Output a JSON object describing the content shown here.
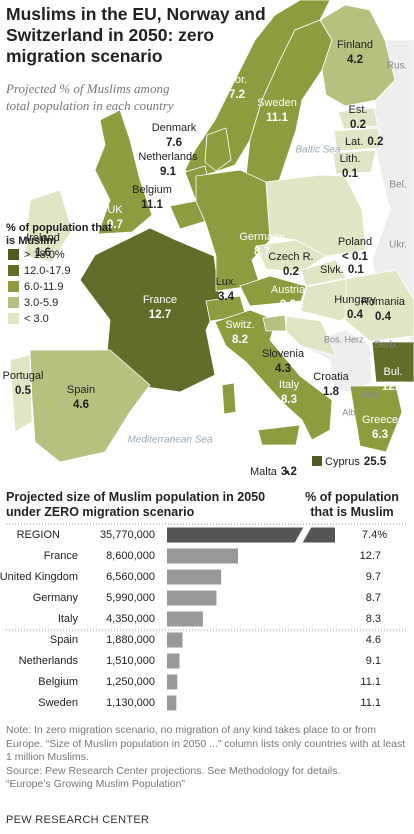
{
  "header": {
    "title": "Muslims in the EU, Norway and Switzerland in 2050: zero migration scenario",
    "subtitle": "Projected % of Muslims among total population in each country"
  },
  "map": {
    "legend": {
      "title": "% of population that is Muslim",
      "items": [
        {
          "label": "> 18.0%",
          "color": "#4e5a1f"
        },
        {
          "label": "12.0-17.9",
          "color": "#616d29"
        },
        {
          "label": "6.0-11.9",
          "color": "#8d9c3e"
        },
        {
          "label": "3.0-5.9",
          "color": "#b7c17f"
        },
        {
          "label": "< 3.0",
          "color": "#e0e5c6"
        }
      ]
    },
    "countries": [
      {
        "name": "Finland",
        "value": 4.2
      },
      {
        "name": "Nor.",
        "value": 7.2
      },
      {
        "name": "Sweden",
        "value": 11.1
      },
      {
        "name": "Est.",
        "value": 0.2
      },
      {
        "name": "Lat.",
        "value": 0.2
      },
      {
        "name": "Lith.",
        "value": 0.1
      },
      {
        "name": "Denmark",
        "value": 7.6
      },
      {
        "name": "Ireland",
        "value": 1.6
      },
      {
        "name": "UK",
        "value": 9.7
      },
      {
        "name": "Netherlands",
        "value": 9.1
      },
      {
        "name": "Belgium",
        "value": 11.1
      },
      {
        "name": "Germany",
        "value": 8.7
      },
      {
        "name": "Poland",
        "value": 0.1,
        "value_label": "< 0.1"
      },
      {
        "name": "Czech R.",
        "value": 0.2
      },
      {
        "name": "Slvk.",
        "value": 0.1
      },
      {
        "name": "Lux.",
        "value": 3.4
      },
      {
        "name": "France",
        "value": 12.7
      },
      {
        "name": "Switz.",
        "value": 8.2
      },
      {
        "name": "Austria",
        "value": 9.3
      },
      {
        "name": "Hungary",
        "value": 0.4
      },
      {
        "name": "Romania",
        "value": 0.4
      },
      {
        "name": "Slovenia",
        "value": 4.3
      },
      {
        "name": "Croatia",
        "value": 1.8
      },
      {
        "name": "Italy",
        "value": 8.3
      },
      {
        "name": "Bul.",
        "value": 12.5
      },
      {
        "name": "Greece",
        "value": 6.3
      },
      {
        "name": "Portugal",
        "value": 0.5
      },
      {
        "name": "Spain",
        "value": 4.6
      },
      {
        "name": "Malta",
        "value": 3.2
      },
      {
        "name": "Cyprus",
        "value": 25.5
      }
    ],
    "other_labels": [
      "Rus.",
      "Baltic Sea",
      "Bel.",
      "Ukr.",
      "Serb.",
      "Bos. Herz.",
      "Mac.",
      "Alb.",
      "Mediterranean Sea"
    ]
  },
  "chart_data": {
    "type": "bar",
    "title": "Projected size of Muslim population in 2050 under ZERO migration scenario",
    "pct_title": "% of population that is Muslim",
    "categories": [
      "REGION",
      "France",
      "United Kingdom",
      "Germany",
      "Italy",
      "Spain",
      "Netherlands",
      "Belgium",
      "Sweden"
    ],
    "values": [
      35770000,
      8600000,
      6560000,
      5990000,
      4350000,
      1880000,
      1510000,
      1250000,
      1130000
    ],
    "value_labels": [
      "35,770,000",
      "8,600,000",
      "6,560,000",
      "5,990,000",
      "4,350,000",
      "1,880,000",
      "1,510,000",
      "1,250,000",
      "1,130,000"
    ],
    "pct_values": [
      7.4,
      12.7,
      9.7,
      8.7,
      8.3,
      4.6,
      9.1,
      11.1,
      11.1
    ],
    "pct_labels": [
      "7.4%",
      "12.7",
      "9.7",
      "8.7",
      "8.3",
      "4.6",
      "9.1",
      "11.1",
      "11.1"
    ],
    "colors": [
      "#555555",
      "#999999"
    ]
  },
  "notes": {
    "note": "Note: In zero migration scenario, no migration of any kind takes place to or from Europe. “Size of Muslim population in 2050 ...” column lists only countries with at least 1 million Muslims.",
    "source": "Source: Pew Research Center projections. See Methodology for details.",
    "citation": "“Europe’s Growing Muslim Population”"
  },
  "footer": "PEW RESEARCH CENTER"
}
